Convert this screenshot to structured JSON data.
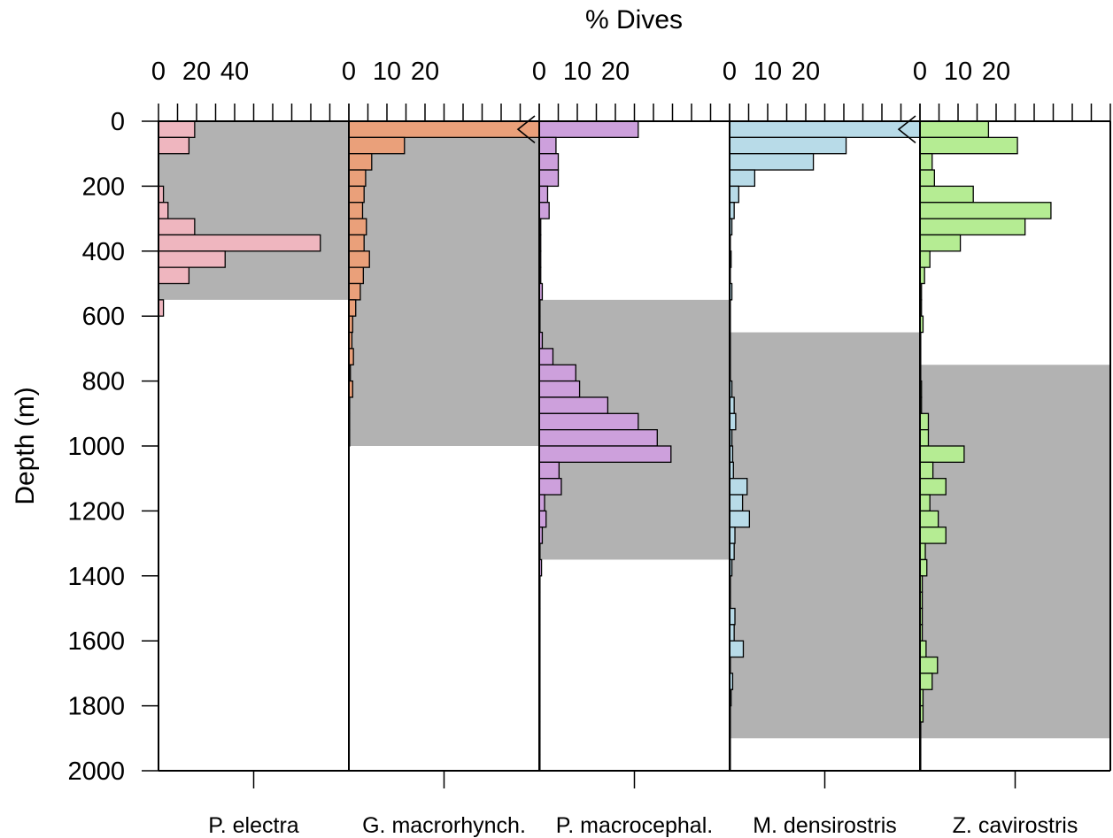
{
  "chart_data": {
    "type": "bar",
    "orientation": "horizontal",
    "xlabel": "% Dives",
    "ylabel": "Depth (m)",
    "y_ticks": [
      "0",
      "200",
      "400",
      "600",
      "800",
      "1000",
      "1200",
      "1400",
      "1600",
      "1800",
      "2000"
    ],
    "ylim": [
      0,
      2000
    ],
    "bin_width": 50,
    "grid": false,
    "panels": [
      {
        "name": "P. electra",
        "color": "#efb6bf",
        "xlim": [
          0,
          50
        ],
        "x_ticks": [
          "0",
          "20",
          "40"
        ],
        "shaded_depth": [
          0,
          550
        ],
        "values": [
          9.5,
          8,
          0,
          0,
          1.3,
          2.5,
          9.5,
          42.5,
          17.5,
          8,
          0,
          1.3
        ]
      },
      {
        "name": "G. macrorhynch.",
        "color": "#eaa07a",
        "xlim": [
          0,
          25
        ],
        "x_ticks": [
          "0",
          "10",
          "20"
        ],
        "shaded_depth": [
          0,
          1000
        ],
        "break_bin": 0,
        "values": [
          25,
          7.3,
          3,
          2.2,
          2,
          1.8,
          2.3,
          2,
          2.7,
          1.9,
          1.5,
          0.9,
          0.5,
          0.4,
          0.6,
          0.2,
          0.5,
          0.1,
          0.1,
          0.1
        ]
      },
      {
        "name": "P. macrocephal.",
        "color": "#cda0dc",
        "xlim": [
          0,
          25
        ],
        "x_ticks": [
          "0",
          "10",
          "20"
        ],
        "shaded_depth": [
          550,
          1350
        ],
        "values": [
          13,
          2.2,
          2.5,
          2.5,
          1.1,
          1.3,
          0.2,
          0.2,
          0.2,
          0.2,
          0.4,
          0.1,
          0.1,
          0.4,
          1.8,
          4.8,
          5.3,
          9,
          13,
          15.5,
          17.3,
          2.6,
          2.9,
          0.7,
          0.9,
          0.4,
          0.1,
          0.3,
          0.1,
          0.1,
          0.1,
          0.1,
          0.1,
          0.1,
          0.1,
          0.1,
          0.1,
          0.1,
          0.1,
          0.1
        ]
      },
      {
        "name": "M. densirostris",
        "color": "#b8dbe8",
        "xlim": [
          0,
          25
        ],
        "x_ticks": [
          "0",
          "10",
          "20"
        ],
        "shaded_depth": [
          650,
          1900
        ],
        "break_bin": 0,
        "values": [
          25,
          15.3,
          11,
          3.3,
          1.2,
          0.6,
          0.3,
          0.1,
          0.2,
          0.1,
          0.3,
          0.1,
          0.1,
          0.1,
          0.1,
          0.1,
          0.3,
          0.6,
          0.8,
          0.3,
          0.4,
          0.5,
          2.3,
          1.7,
          2.6,
          0.7,
          0.6,
          0.3,
          0.1,
          0.1,
          0.7,
          0.6,
          1.8,
          0.1,
          0.4,
          0.2,
          0.1,
          0.1,
          0.1,
          0.1
        ]
      },
      {
        "name": "Z. cavirostris",
        "color": "#b5ec93",
        "xlim": [
          0,
          25
        ],
        "x_ticks": [
          "0",
          "10",
          "20"
        ],
        "shaded_depth": [
          750,
          1900
        ],
        "values": [
          9,
          12.8,
          1.6,
          1.9,
          7,
          17.2,
          13.8,
          5.3,
          1.3,
          0.6,
          0.2,
          0.2,
          0.4,
          0.1,
          0.1,
          0.1,
          0.2,
          0.2,
          1.1,
          1.1,
          5.8,
          1.7,
          3.4,
          1.3,
          2.4,
          3.4,
          0.7,
          0.9,
          0.3,
          0.3,
          0.3,
          0.3,
          0.8,
          2.3,
          1.6,
          0.4,
          0.4,
          0.1,
          0.1,
          0.1
        ]
      }
    ]
  }
}
